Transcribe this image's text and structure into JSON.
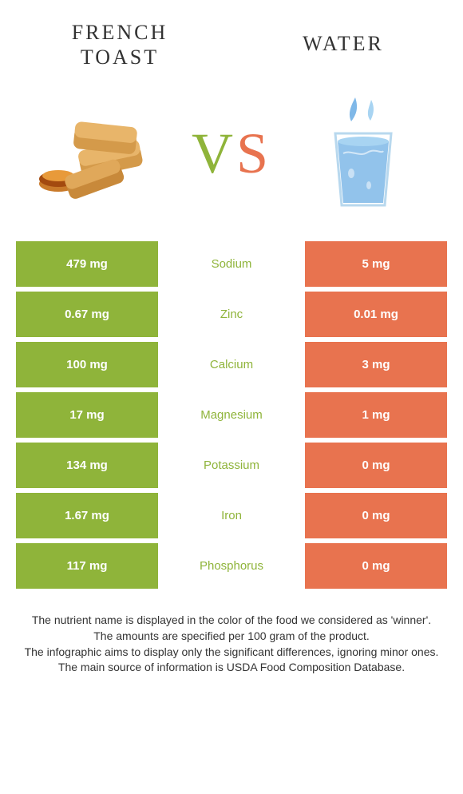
{
  "titles": {
    "left": "French toast",
    "right": "Water",
    "vs_v": "V",
    "vs_s": "S"
  },
  "colors": {
    "left": "#8fb43a",
    "right": "#e8734f",
    "text": "#333333"
  },
  "nutrients": [
    {
      "name": "Sodium",
      "left": "479 mg",
      "right": "5 mg",
      "winner": "left"
    },
    {
      "name": "Zinc",
      "left": "0.67 mg",
      "right": "0.01 mg",
      "winner": "left"
    },
    {
      "name": "Calcium",
      "left": "100 mg",
      "right": "3 mg",
      "winner": "left"
    },
    {
      "name": "Magnesium",
      "left": "17 mg",
      "right": "1 mg",
      "winner": "left"
    },
    {
      "name": "Potassium",
      "left": "134 mg",
      "right": "0 mg",
      "winner": "left"
    },
    {
      "name": "Iron",
      "left": "1.67 mg",
      "right": "0 mg",
      "winner": "left"
    },
    {
      "name": "Phosphorus",
      "left": "117 mg",
      "right": "0 mg",
      "winner": "left"
    }
  ],
  "footer": [
    "The nutrient name is displayed in the color of the food we considered as 'winner'.",
    "The amounts are specified per 100 gram of the product.",
    "The infographic aims to display only the significant differences, ignoring minor ones.",
    "The main source of information is USDA Food Composition Database."
  ]
}
